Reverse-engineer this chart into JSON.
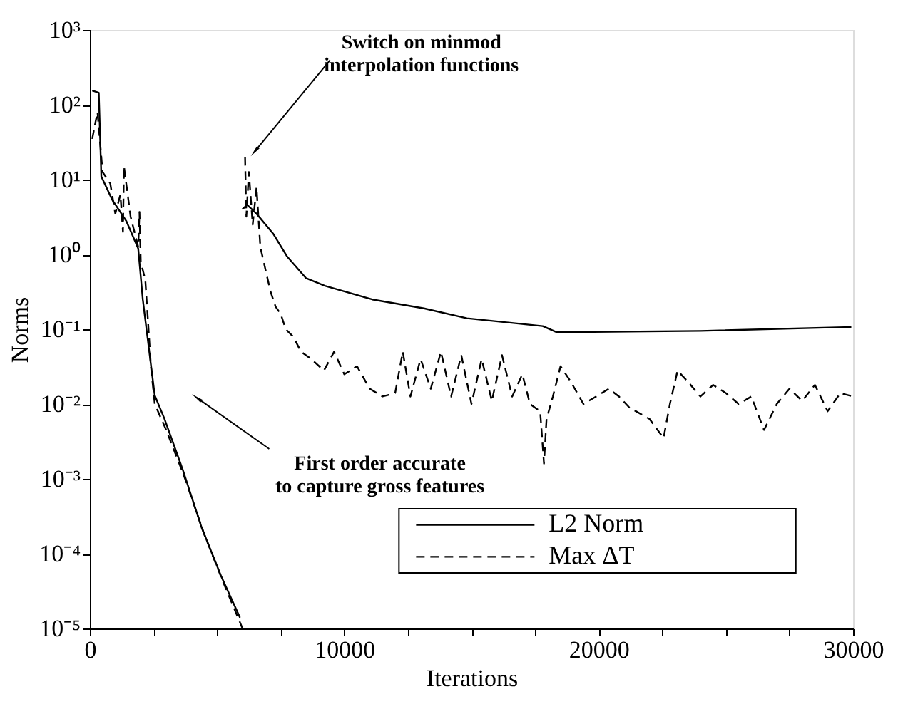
{
  "chart_data": {
    "type": "line",
    "xlabel": "Iterations",
    "ylabel": "Norms",
    "log": "y",
    "grid": false,
    "legend": "bottom right",
    "xlim": [
      0,
      30000
    ],
    "xticks": [
      0,
      {
        "value": 2500,
        "label": null
      },
      {
        "value": 5000,
        "label": null
      },
      {
        "value": 7500,
        "label": null
      },
      10000,
      {
        "value": 12500,
        "label": null
      },
      {
        "value": 15000,
        "label": null
      },
      {
        "value": 17500,
        "label": null
      },
      20000,
      {
        "value": 22500,
        "label": null
      },
      {
        "value": 25000,
        "label": null
      },
      {
        "value": 27500,
        "label": null
      },
      30000
    ],
    "ylim": [
      1e-05,
      1000
    ],
    "yticks": [
      {
        "value": 1e-05,
        "label": "10⁻⁵"
      },
      {
        "value": 0.0001,
        "label": "10⁻⁴"
      },
      {
        "value": 0.001,
        "label": "10⁻³"
      },
      {
        "value": 0.01,
        "label": "10⁻²"
      },
      {
        "value": 0.1,
        "label": "10⁻¹"
      },
      {
        "value": 1,
        "label": "10⁰"
      },
      {
        "value": 10,
        "label": "10¹"
      },
      {
        "value": 100,
        "label": "10²"
      },
      {
        "value": 1000,
        "label": "10³"
      }
    ],
    "series": [
      {
        "name": "L2 Norm",
        "color": "#000000",
        "line_style": "solid",
        "x": [
          93,
          350,
          450,
          874,
          1430,
          1900,
          2080,
          2550,
          2920,
          3660,
          4400,
          5150,
          5900,
          5950,
          5990,
          6180,
          6550,
          7200,
          7760,
          8500,
          9240,
          11100,
          13130,
          14820,
          17800,
          18360,
          24000,
          29930
        ],
        "values": [
          155,
          145,
          11,
          5.4,
          2.8,
          1.2,
          0.25,
          0.013,
          0.0065,
          0.0013,
          0.00022,
          5.1e-05,
          1.4e-05,
          null,
          4,
          4.6,
          3.5,
          1.9,
          0.93,
          0.48,
          0.38,
          0.25,
          0.19,
          0.14,
          0.11,
          0.091,
          0.095,
          0.107
        ]
      },
      {
        "name": "Max ΔT",
        "color": "#000000",
        "line_style": "dashed",
        "x": [
          93,
          300,
          500,
          800,
          1000,
          1200,
          1300,
          1340,
          1600,
          1900,
          1950,
          2000,
          2180,
          2400,
          2550,
          3000,
          3700,
          4500,
          5200,
          6000,
          6050,
          6100,
          6150,
          6250,
          6400,
          6550,
          6700,
          6900,
          7100,
          7300,
          7500,
          7700,
          8000,
          8300,
          8700,
          9200,
          9600,
          10000,
          10500,
          11000,
          11500,
          12000,
          12300,
          12600,
          13000,
          13400,
          13800,
          14200,
          14600,
          15000,
          15400,
          15800,
          16200,
          16600,
          17000,
          17300,
          17700,
          17850,
          17950,
          18200,
          18500,
          18900,
          19400,
          19900,
          20400,
          20800,
          21200,
          22000,
          22550,
          22800,
          23100,
          23500,
          24000,
          24500,
          25000,
          25500,
          26000,
          26500,
          27000,
          27500,
          28000,
          28500,
          29000,
          29500,
          30000
        ],
        "values": [
          35,
          80,
          12.6,
          8.9,
          3.5,
          6.3,
          2,
          15,
          3.2,
          1.26,
          3.7,
          0.8,
          0.45,
          0.032,
          0.01,
          0.0045,
          0.0011,
          0.00018,
          4.5e-05,
          1e-05,
          null,
          20,
          3.2,
          12.6,
          2.5,
          7.9,
          1.26,
          0.63,
          0.32,
          0.2,
          0.16,
          0.1,
          0.079,
          0.05,
          0.04,
          0.028,
          0.05,
          0.025,
          0.032,
          0.016,
          0.0126,
          0.014,
          0.05,
          0.0126,
          0.04,
          0.016,
          0.05,
          0.0126,
          0.045,
          0.01,
          0.04,
          0.011,
          0.045,
          0.0126,
          0.025,
          0.01,
          0.008,
          0.0016,
          0.0063,
          0.0126,
          0.032,
          0.02,
          0.01,
          0.0126,
          0.016,
          0.0126,
          0.009,
          0.0063,
          0.0035,
          0.01,
          0.028,
          0.02,
          0.0126,
          0.018,
          0.014,
          0.01,
          0.0126,
          0.0045,
          0.01,
          0.016,
          0.011,
          0.018,
          0.008,
          0.014,
          0.0126
        ]
      }
    ],
    "annotations": [
      {
        "text": "Switch on  minmod\ninterpolation functions",
        "x": 6300,
        "y": 20
      },
      "First order accurate\nto capture gross features"
    ]
  }
}
